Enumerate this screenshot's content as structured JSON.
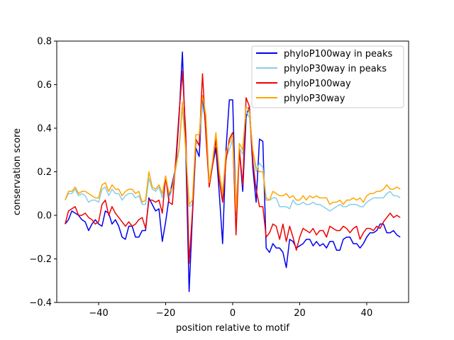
{
  "chart_data": {
    "type": "line",
    "title": "",
    "xlabel": "position relative to motif",
    "ylabel": "conservation score",
    "xlim": [
      -52.5,
      52.5
    ],
    "ylim": [
      -0.4,
      0.8
    ],
    "xticks": [
      -40,
      -20,
      0,
      20,
      40
    ],
    "yticks": [
      -0.4,
      -0.2,
      0.0,
      0.2,
      0.4,
      0.6,
      0.8
    ],
    "xtick_labels": [
      "−40",
      "−20",
      "0",
      "20",
      "40"
    ],
    "ytick_labels": [
      "−0.4",
      "−0.2",
      "0.0",
      "0.2",
      "0.4",
      "0.6",
      "0.8"
    ],
    "grid": false,
    "legend_position": "top-right",
    "x_start": -50,
    "x_step": 1,
    "series": [
      {
        "name": "phyloP100way in peaks",
        "color": "#0000ee",
        "values": [
          -0.04,
          -0.02,
          0.02,
          0.01,
          0.0,
          -0.02,
          -0.03,
          -0.07,
          -0.04,
          -0.02,
          -0.04,
          -0.05,
          0.02,
          0.01,
          -0.04,
          -0.02,
          -0.05,
          -0.1,
          -0.11,
          -0.05,
          -0.05,
          -0.1,
          -0.1,
          -0.07,
          -0.07,
          0.08,
          0.05,
          0.02,
          0.03,
          -0.12,
          -0.03,
          0.08,
          0.15,
          0.22,
          0.45,
          0.75,
          0.3,
          -0.35,
          0.0,
          0.31,
          0.27,
          0.55,
          0.4,
          0.14,
          0.23,
          0.31,
          0.1,
          -0.13,
          0.3,
          0.53,
          0.53,
          0.0,
          0.3,
          0.11,
          0.45,
          0.5,
          0.22,
          0.06,
          0.35,
          0.34,
          -0.15,
          -0.17,
          -0.13,
          -0.15,
          -0.15,
          -0.17,
          -0.24,
          -0.11,
          -0.12,
          -0.15,
          -0.14,
          -0.13,
          -0.11,
          -0.11,
          -0.14,
          -0.12,
          -0.14,
          -0.13,
          -0.15,
          -0.12,
          -0.12,
          -0.16,
          -0.16,
          -0.11,
          -0.1,
          -0.1,
          -0.13,
          -0.13,
          -0.15,
          -0.13,
          -0.1,
          -0.08,
          -0.08,
          -0.07,
          -0.04,
          -0.04,
          -0.08,
          -0.08,
          -0.07,
          -0.09,
          -0.1
        ]
      },
      {
        "name": "phyloP30way in peaks",
        "color": "#87ceeb",
        "values": [
          0.07,
          0.1,
          0.1,
          0.12,
          0.09,
          0.1,
          0.09,
          0.06,
          0.07,
          0.07,
          0.06,
          0.12,
          0.13,
          0.09,
          0.12,
          0.1,
          0.1,
          0.07,
          0.09,
          0.1,
          0.1,
          0.08,
          0.09,
          0.05,
          0.05,
          0.17,
          0.12,
          0.11,
          0.13,
          0.08,
          0.16,
          0.08,
          0.12,
          0.21,
          0.3,
          0.5,
          0.3,
          0.04,
          0.05,
          0.33,
          0.33,
          0.5,
          0.43,
          0.13,
          0.24,
          0.35,
          0.18,
          0.08,
          0.27,
          0.3,
          0.35,
          0.0,
          0.31,
          0.28,
          0.48,
          0.45,
          0.28,
          0.2,
          0.24,
          0.22,
          0.08,
          0.07,
          0.08,
          0.08,
          0.04,
          0.04,
          0.04,
          0.03,
          0.07,
          0.05,
          0.05,
          0.06,
          0.05,
          0.05,
          0.06,
          0.05,
          0.05,
          0.04,
          0.03,
          0.02,
          0.03,
          0.04,
          0.05,
          0.04,
          0.04,
          0.05,
          0.05,
          0.05,
          0.04,
          0.04,
          0.06,
          0.07,
          0.08,
          0.08,
          0.08,
          0.08,
          0.1,
          0.11,
          0.09,
          0.09,
          0.08
        ]
      },
      {
        "name": "phyloP100way",
        "color": "#ee0000",
        "values": [
          -0.04,
          0.02,
          0.03,
          0.04,
          0.0,
          0.0,
          0.01,
          -0.01,
          -0.02,
          -0.04,
          -0.03,
          0.05,
          0.07,
          0.0,
          0.04,
          0.01,
          -0.01,
          -0.03,
          -0.05,
          -0.03,
          -0.05,
          -0.04,
          -0.02,
          -0.01,
          -0.06,
          0.07,
          0.07,
          0.06,
          0.07,
          0.01,
          0.18,
          0.06,
          0.05,
          0.25,
          0.47,
          0.66,
          0.38,
          -0.22,
          0.02,
          0.35,
          0.32,
          0.65,
          0.37,
          0.13,
          0.23,
          0.35,
          0.16,
          0.06,
          0.25,
          0.35,
          0.38,
          -0.09,
          0.3,
          0.14,
          0.54,
          0.5,
          0.25,
          0.12,
          0.04,
          0.04,
          -0.1,
          -0.08,
          -0.04,
          -0.05,
          -0.11,
          -0.04,
          -0.12,
          -0.05,
          -0.1,
          -0.16,
          -0.1,
          -0.06,
          -0.07,
          -0.08,
          -0.06,
          -0.09,
          -0.07,
          -0.07,
          -0.1,
          -0.05,
          -0.06,
          -0.07,
          -0.07,
          -0.05,
          -0.06,
          -0.08,
          -0.06,
          -0.05,
          -0.11,
          -0.08,
          -0.06,
          -0.06,
          -0.07,
          -0.05,
          -0.06,
          -0.03,
          -0.01,
          0.01,
          -0.01,
          0.0,
          -0.01
        ]
      },
      {
        "name": "phyloP30way",
        "color": "#ffa500",
        "values": [
          0.07,
          0.11,
          0.11,
          0.13,
          0.1,
          0.11,
          0.11,
          0.1,
          0.09,
          0.08,
          0.08,
          0.14,
          0.15,
          0.11,
          0.14,
          0.12,
          0.12,
          0.09,
          0.11,
          0.12,
          0.12,
          0.1,
          0.11,
          0.06,
          0.07,
          0.2,
          0.13,
          0.12,
          0.14,
          0.1,
          0.18,
          0.1,
          0.13,
          0.22,
          0.31,
          0.52,
          0.3,
          0.05,
          0.07,
          0.37,
          0.37,
          0.55,
          0.46,
          0.15,
          0.25,
          0.38,
          0.2,
          0.1,
          0.29,
          0.33,
          0.37,
          0.02,
          0.33,
          0.3,
          0.5,
          0.48,
          0.3,
          0.22,
          0.2,
          0.2,
          0.07,
          0.07,
          0.11,
          0.1,
          0.09,
          0.09,
          0.1,
          0.08,
          0.09,
          0.07,
          0.07,
          0.09,
          0.07,
          0.09,
          0.08,
          0.09,
          0.08,
          0.08,
          0.08,
          0.05,
          0.06,
          0.06,
          0.07,
          0.05,
          0.07,
          0.07,
          0.08,
          0.07,
          0.08,
          0.06,
          0.09,
          0.1,
          0.1,
          0.11,
          0.11,
          0.12,
          0.14,
          0.12,
          0.12,
          0.13,
          0.12
        ]
      }
    ]
  }
}
